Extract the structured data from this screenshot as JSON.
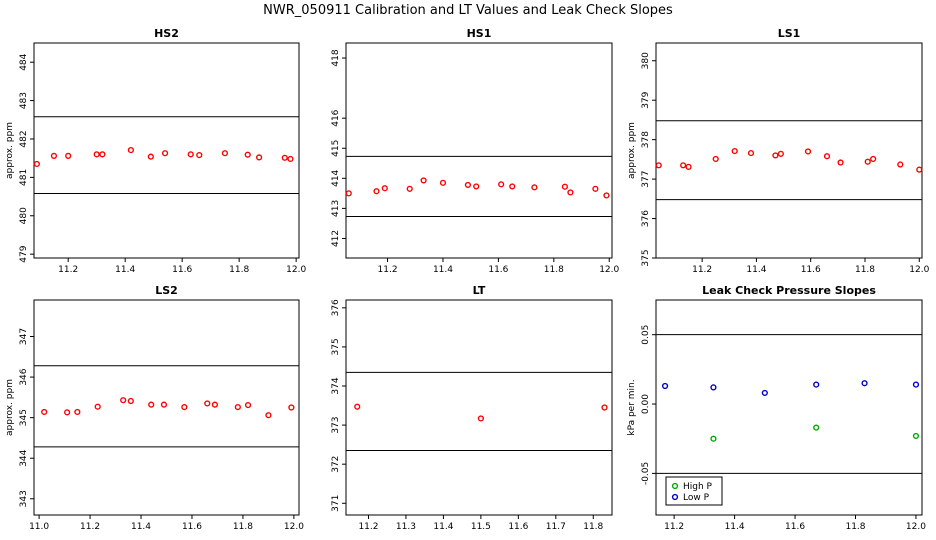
{
  "figure": {
    "title": "NWR_050911  Calibration and LT Values and Leak Check Slopes"
  },
  "chart_data": [
    {
      "type": "scatter",
      "title": "HS2",
      "ylabel": "approx. ppm",
      "xlim": [
        11.08,
        12.01
      ],
      "ylim": [
        478.9,
        484.5
      ],
      "xticks": [
        11.2,
        11.4,
        11.6,
        11.8,
        12.0
      ],
      "xtick_labels": [
        "11.2",
        "11.4",
        "11.6",
        "11.8",
        "12.0"
      ],
      "yticks": [
        479,
        480,
        481,
        482,
        483,
        484
      ],
      "ytick_labels": [
        "479",
        "480",
        "481",
        "482",
        "483",
        "484"
      ],
      "hlines": [
        482.58,
        480.58
      ],
      "series": [
        {
          "color": "#ff0000",
          "x": [
            11.09,
            11.15,
            11.2,
            11.3,
            11.32,
            11.42,
            11.49,
            11.54,
            11.63,
            11.66,
            11.75,
            11.83,
            11.87,
            11.96,
            11.98
          ],
          "y": [
            481.35,
            481.56,
            481.56,
            481.6,
            481.6,
            481.71,
            481.54,
            481.63,
            481.6,
            481.58,
            481.63,
            481.59,
            481.52,
            481.51,
            481.48
          ]
        }
      ]
    },
    {
      "type": "scatter",
      "title": "HS1",
      "ylabel": "",
      "xlim": [
        11.05,
        12.01
      ],
      "ylim": [
        411.35,
        418.5
      ],
      "xticks": [
        11.2,
        11.4,
        11.6,
        11.8,
        12.0
      ],
      "xtick_labels": [
        "11.2",
        "11.4",
        "11.6",
        "11.8",
        "12.0"
      ],
      "yticks": [
        412,
        413,
        414,
        415,
        416,
        418
      ],
      "ytick_labels": [
        "412",
        "413",
        "414",
        "415",
        "416",
        "418"
      ],
      "hlines": [
        414.73,
        412.73
      ],
      "series": [
        {
          "color": "#ff0000",
          "x": [
            11.06,
            11.16,
            11.19,
            11.28,
            11.33,
            11.4,
            11.49,
            11.52,
            11.61,
            11.65,
            11.73,
            11.84,
            11.86,
            11.95,
            11.99
          ],
          "y": [
            413.5,
            413.57,
            413.67,
            413.65,
            413.93,
            413.85,
            413.78,
            413.73,
            413.8,
            413.73,
            413.7,
            413.72,
            413.53,
            413.65,
            413.43
          ]
        }
      ]
    },
    {
      "type": "scatter",
      "title": "LS1",
      "ylabel": "approx. ppm",
      "xlim": [
        11.03,
        12.01
      ],
      "ylim": [
        375.0,
        380.45
      ],
      "xticks": [
        11.2,
        11.4,
        11.6,
        11.8,
        12.0
      ],
      "xtick_labels": [
        "11.2",
        "11.4",
        "11.6",
        "11.8",
        "12.0"
      ],
      "yticks": [
        375,
        376,
        377,
        378,
        379,
        380
      ],
      "ytick_labels": [
        "375",
        "376",
        "377",
        "378",
        "379",
        "380"
      ],
      "hlines": [
        378.48,
        376.48
      ],
      "series": [
        {
          "color": "#ff0000",
          "x": [
            11.04,
            11.13,
            11.15,
            11.25,
            11.32,
            11.38,
            11.47,
            11.49,
            11.59,
            11.66,
            11.71,
            11.81,
            11.83,
            11.93,
            12.0
          ],
          "y": [
            377.35,
            377.35,
            377.31,
            377.51,
            377.71,
            377.66,
            377.6,
            377.64,
            377.7,
            377.58,
            377.42,
            377.44,
            377.51,
            377.37,
            377.24
          ]
        }
      ]
    },
    {
      "type": "scatter",
      "title": "LS2",
      "ylabel": "approx. ppm",
      "xlim": [
        10.98,
        12.02
      ],
      "ylim": [
        342.6,
        347.9
      ],
      "xticks": [
        11.0,
        11.2,
        11.4,
        11.6,
        11.8,
        12.0
      ],
      "xtick_labels": [
        "11.0",
        "11.2",
        "11.4",
        "11.6",
        "11.8",
        "12.0"
      ],
      "yticks": [
        343,
        344,
        345,
        346,
        347
      ],
      "ytick_labels": [
        "343",
        "344",
        "345",
        "346",
        "347"
      ],
      "hlines": [
        346.28,
        344.28
      ],
      "series": [
        {
          "color": "#ff0000",
          "x": [
            11.02,
            11.11,
            11.15,
            11.23,
            11.33,
            11.36,
            11.44,
            11.49,
            11.57,
            11.66,
            11.69,
            11.78,
            11.82,
            11.9,
            11.99
          ],
          "y": [
            345.14,
            345.13,
            345.14,
            345.27,
            345.43,
            345.41,
            345.32,
            345.32,
            345.26,
            345.35,
            345.32,
            345.26,
            345.31,
            345.06,
            345.25
          ]
        }
      ]
    },
    {
      "type": "scatter",
      "title": "LT",
      "ylabel": "",
      "xlim": [
        11.14,
        11.85
      ],
      "ylim": [
        370.7,
        376.2
      ],
      "xticks": [
        11.2,
        11.3,
        11.4,
        11.5,
        11.6,
        11.7,
        11.8
      ],
      "xtick_labels": [
        "11.2",
        "11.3",
        "11.4",
        "11.5",
        "11.6",
        "11.7",
        "11.8"
      ],
      "yticks": [
        371,
        372,
        373,
        374,
        375,
        376
      ],
      "ytick_labels": [
        "371",
        "372",
        "373",
        "374",
        "375",
        "376"
      ],
      "hlines": [
        374.35,
        372.35
      ],
      "series": [
        {
          "color": "#ff0000",
          "x": [
            11.17,
            11.5,
            11.83
          ],
          "y": [
            373.47,
            373.17,
            373.45
          ]
        }
      ]
    },
    {
      "type": "scatter",
      "title": "Leak Check Pressure Slopes",
      "ylabel": "kPa per min.",
      "xlim": [
        11.14,
        12.02
      ],
      "ylim": [
        -0.08,
        0.075
      ],
      "xticks": [
        11.2,
        11.4,
        11.6,
        11.8,
        12.0
      ],
      "xtick_labels": [
        "11.2",
        "11.4",
        "11.6",
        "11.8",
        "12.0"
      ],
      "yticks": [
        -0.05,
        0.0,
        0.05
      ],
      "ytick_labels": [
        "-0.05",
        "0.00",
        "0.05"
      ],
      "hlines": [
        0.05,
        -0.05
      ],
      "legend": {
        "position": "bottom-left"
      },
      "series": [
        {
          "name": "High P",
          "color": "#00aa00",
          "x": [
            11.33,
            11.67,
            12.0
          ],
          "y": [
            -0.025,
            -0.017,
            -0.023
          ]
        },
        {
          "name": "Low P",
          "color": "#0000cc",
          "x": [
            11.17,
            11.33,
            11.5,
            11.67,
            11.83,
            12.0
          ],
          "y": [
            0.013,
            0.012,
            0.008,
            0.014,
            0.015,
            0.014
          ]
        }
      ]
    }
  ]
}
